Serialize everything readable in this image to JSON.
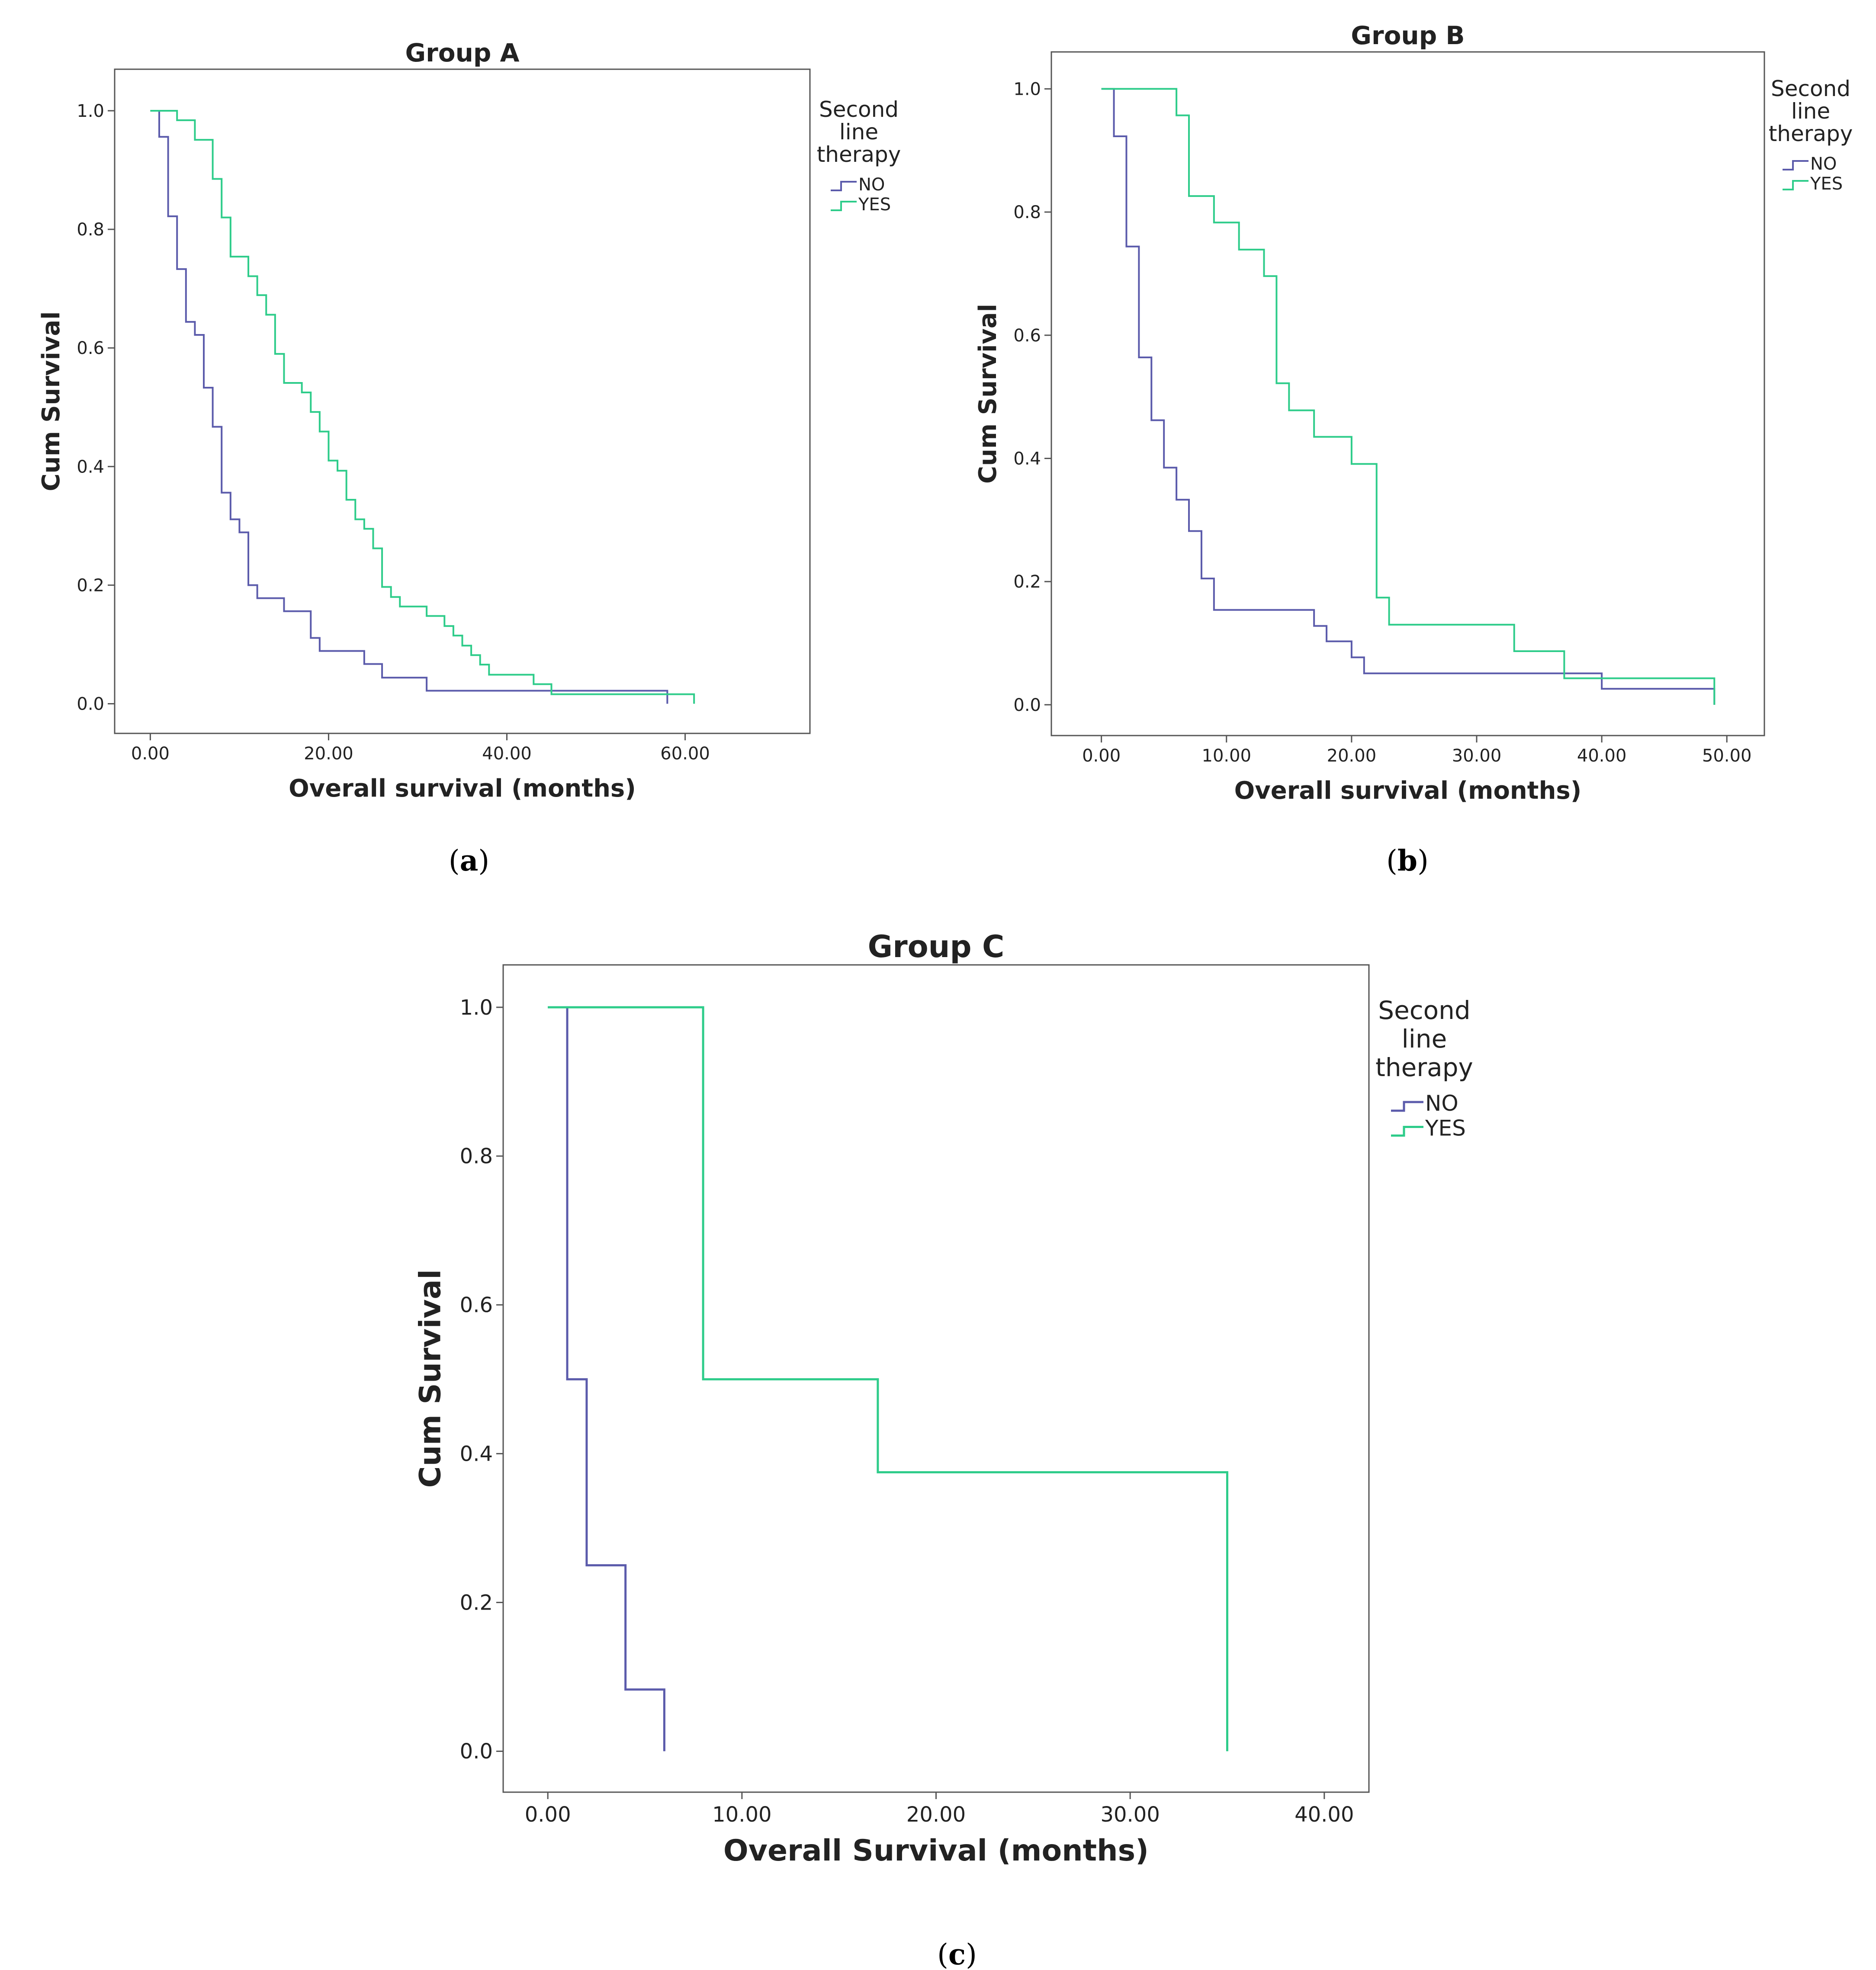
{
  "colors": {
    "no": "#5b5bab",
    "yes": "#2ecc8a",
    "frame": "#555555",
    "text": "#222222"
  },
  "chart_data": [
    {
      "panel": "a",
      "type": "line",
      "step": true,
      "title": "Group A",
      "xlabel": "Overall survival (months)",
      "ylabel": "Cum Survival",
      "xticks": [
        "0.00",
        "20.00",
        "40.00",
        "60.00"
      ],
      "yticks": [
        "0.0",
        "0.2",
        "0.4",
        "0.6",
        "0.8",
        "1.0"
      ],
      "xlim": [
        -4,
        74
      ],
      "ylim": [
        -0.05,
        1.07
      ],
      "legend": {
        "position": "right",
        "title_lines": [
          "Second",
          "line",
          "therapy"
        ]
      },
      "caption": {
        "open": "(",
        "letter": "a",
        "close": ")"
      },
      "series": [
        {
          "name": "NO",
          "color": "#5b5bab",
          "x": [
            0,
            1,
            2,
            3,
            4,
            5,
            6,
            7,
            8,
            9,
            10,
            11,
            12,
            15,
            18,
            19,
            24,
            26,
            31,
            58
          ],
          "y": [
            1.0,
            0.956,
            0.822,
            0.733,
            0.644,
            0.622,
            0.533,
            0.467,
            0.356,
            0.311,
            0.289,
            0.2,
            0.178,
            0.156,
            0.111,
            0.089,
            0.067,
            0.044,
            0.022,
            0.0
          ]
        },
        {
          "name": "YES",
          "color": "#2ecc8a",
          "x": [
            0,
            3,
            5,
            6,
            7,
            8,
            9,
            11,
            12,
            13,
            14,
            15,
            17,
            18,
            19,
            20,
            21,
            22,
            23,
            24,
            25,
            26,
            27,
            28,
            31,
            33,
            34,
            35,
            36,
            37,
            38,
            40,
            43,
            45,
            61
          ],
          "y": [
            1.0,
            0.984,
            0.951,
            0.951,
            0.885,
            0.82,
            0.754,
            0.721,
            0.689,
            0.656,
            0.59,
            0.541,
            0.525,
            0.492,
            0.459,
            0.41,
            0.393,
            0.344,
            0.311,
            0.295,
            0.262,
            0.197,
            0.18,
            0.164,
            0.148,
            0.131,
            0.115,
            0.098,
            0.082,
            0.066,
            0.049,
            0.049,
            0.033,
            0.016,
            0.0
          ]
        }
      ]
    },
    {
      "panel": "b",
      "type": "line",
      "step": true,
      "title": "Group B",
      "xlabel": "Overall survival (months)",
      "ylabel": "Cum Survival",
      "xticks": [
        "0.00",
        "10.00",
        "20.00",
        "30.00",
        "40.00",
        "50.00"
      ],
      "yticks": [
        "0.0",
        "0.2",
        "0.4",
        "0.6",
        "0.8",
        "1.0"
      ],
      "xlim": [
        -4,
        53
      ],
      "ylim": [
        -0.05,
        1.06
      ],
      "legend": {
        "position": "right",
        "title_lines": [
          "Second",
          "line",
          "therapy"
        ]
      },
      "caption": {
        "open": "(",
        "letter": "b",
        "close": ")"
      },
      "series": [
        {
          "name": "NO",
          "color": "#5b5bab",
          "x": [
            0,
            1,
            2,
            3,
            4,
            5,
            6,
            7,
            8,
            9,
            17,
            18,
            20,
            21,
            37,
            40,
            49
          ],
          "y": [
            1.0,
            0.923,
            0.744,
            0.564,
            0.462,
            0.385,
            0.333,
            0.282,
            0.205,
            0.154,
            0.128,
            0.103,
            0.077,
            0.051,
            0.051,
            0.026,
            0.0
          ]
        },
        {
          "name": "YES",
          "color": "#2ecc8a",
          "x": [
            0,
            6,
            7,
            9,
            11,
            13,
            14,
            15,
            17,
            20,
            22,
            23,
            33,
            37,
            49
          ],
          "y": [
            1.0,
            0.957,
            0.826,
            0.783,
            0.739,
            0.696,
            0.522,
            0.478,
            0.435,
            0.391,
            0.174,
            0.13,
            0.087,
            0.043,
            0.0
          ]
        }
      ]
    },
    {
      "panel": "c",
      "type": "line",
      "step": true,
      "title": "Group C",
      "xlabel": "Overall Survival (months)",
      "ylabel": "Cum Survival",
      "xticks": [
        "0.00",
        "10.00",
        "20.00",
        "30.00",
        "40.00"
      ],
      "yticks": [
        "0.0",
        "0.2",
        "0.4",
        "0.6",
        "0.8",
        "1.0"
      ],
      "xlim": [
        -2.3,
        42.3
      ],
      "ylim": [
        -0.055,
        1.057
      ],
      "legend": {
        "position": "right",
        "title_lines": [
          "Second",
          "line",
          "therapy"
        ]
      },
      "caption": {
        "open": "(",
        "letter": "c",
        "close": ")"
      },
      "series": [
        {
          "name": "NO",
          "color": "#5b5bab",
          "x": [
            0,
            1,
            2,
            4,
            6
          ],
          "y": [
            1.0,
            0.5,
            0.25,
            0.083,
            0.0
          ]
        },
        {
          "name": "YES",
          "color": "#2ecc8a",
          "x": [
            0,
            8,
            17,
            35
          ],
          "y": [
            1.0,
            0.5,
            0.375,
            0.0
          ]
        }
      ]
    }
  ]
}
